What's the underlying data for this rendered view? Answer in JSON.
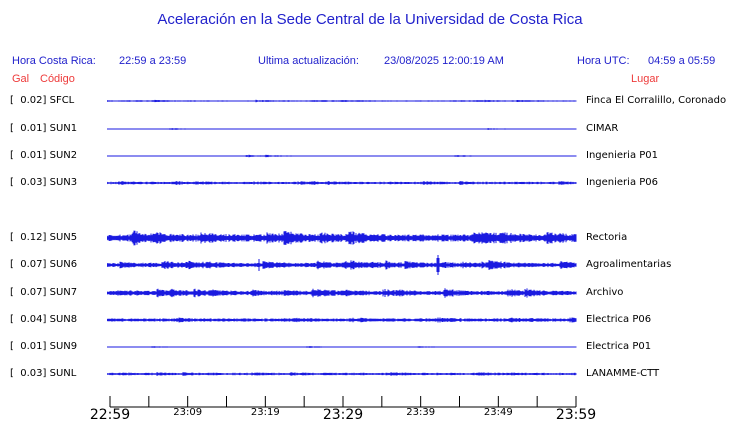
{
  "title": "Aceleración en la Sede Central de la Universidad de Costa Rica",
  "header": {
    "hora_cr_label": "Hora Costa Rica:",
    "hora_cr_value": "22:59 a 23:59",
    "update_label": "Ultima actualización:",
    "update_value": "23/08/2025 12:00:19 AM",
    "hora_utc_label": "Hora UTC:",
    "hora_utc_value": "04:59 a 05:59",
    "col_gal": "Gal",
    "col_codigo": "Código",
    "col_lugar": "Lugar"
  },
  "colors": {
    "blue_text": "#2222cc",
    "red_text": "#ee3b3b",
    "trace": "#0000dd",
    "axis": "#000000"
  },
  "stations": [
    {
      "gal": "0.02",
      "code": "SFCL",
      "place": "Finca El Corralillo, Coronado",
      "row": 0
    },
    {
      "gal": "0.01",
      "code": "SUN1",
      "place": "CIMAR",
      "row": 1
    },
    {
      "gal": "0.01",
      "code": "SUN2",
      "place": "Ingenieria P01",
      "row": 2
    },
    {
      "gal": "0.03",
      "code": "SUN3",
      "place": "Ingenieria P06",
      "row": 3
    },
    {
      "gal": "0.12",
      "code": "SUN5",
      "place": "Rectoria",
      "row": 5
    },
    {
      "gal": "0.07",
      "code": "SUN6",
      "place": "Agroalimentarias",
      "row": 6
    },
    {
      "gal": "0.07",
      "code": "SUN7",
      "place": "Archivo",
      "row": 7
    },
    {
      "gal": "0.04",
      "code": "SUN8",
      "place": "Electrica P06",
      "row": 8
    },
    {
      "gal": "0.01",
      "code": "SUN9",
      "place": "Electrica P01",
      "row": 9
    },
    {
      "gal": "0.03",
      "code": "SUNL",
      "place": "LANAMME-CTT",
      "row": 10
    }
  ],
  "axis": {
    "tick_minutes": [
      0,
      5,
      10,
      15,
      20,
      25,
      30,
      35,
      40,
      45,
      50,
      55,
      60
    ],
    "labels": [
      {
        "text": "22:59",
        "minute": 0,
        "large": true
      },
      {
        "text": "23:09",
        "minute": 10,
        "large": false
      },
      {
        "text": "23:19",
        "minute": 20,
        "large": false
      },
      {
        "text": "23:29",
        "minute": 30,
        "large": true
      },
      {
        "text": "23:39",
        "minute": 40,
        "large": false
      },
      {
        "text": "23:49",
        "minute": 50,
        "large": false
      },
      {
        "text": "23:59",
        "minute": 60,
        "large": true
      }
    ]
  },
  "chart_data": {
    "type": "line",
    "subtype": "seismogram-strip-plot",
    "title": "Aceleración en la Sede Central de la Universidad de Costa Rica",
    "xlabel": "",
    "ylabel": "",
    "x_axis": {
      "start": "22:59",
      "end": "23:59",
      "tick_interval_minutes": 5,
      "labeled_ticks": [
        "22:59",
        "23:09",
        "23:19",
        "23:29",
        "23:39",
        "23:49",
        "23:59"
      ]
    },
    "legend_position": "none",
    "grid": false,
    "series": [
      {
        "name": "SFCL",
        "max_gal": 0.02,
        "location": "Finca El Corralillo, Coronado"
      },
      {
        "name": "SUN1",
        "max_gal": 0.01,
        "location": "CIMAR"
      },
      {
        "name": "SUN2",
        "max_gal": 0.01,
        "location": "Ingenieria P01"
      },
      {
        "name": "SUN3",
        "max_gal": 0.03,
        "location": "Ingenieria P06"
      },
      {
        "name": "SUN5",
        "max_gal": 0.12,
        "location": "Rectoria"
      },
      {
        "name": "SUN6",
        "max_gal": 0.07,
        "location": "Agroalimentarias"
      },
      {
        "name": "SUN7",
        "max_gal": 0.07,
        "location": "Archivo"
      },
      {
        "name": "SUN8",
        "max_gal": 0.04,
        "location": "Electrica P06"
      },
      {
        "name": "SUN9",
        "max_gal": 0.01,
        "location": "Electrica P01"
      },
      {
        "name": "SUNL",
        "max_gal": 0.03,
        "location": "LANAMME-CTT"
      }
    ]
  }
}
